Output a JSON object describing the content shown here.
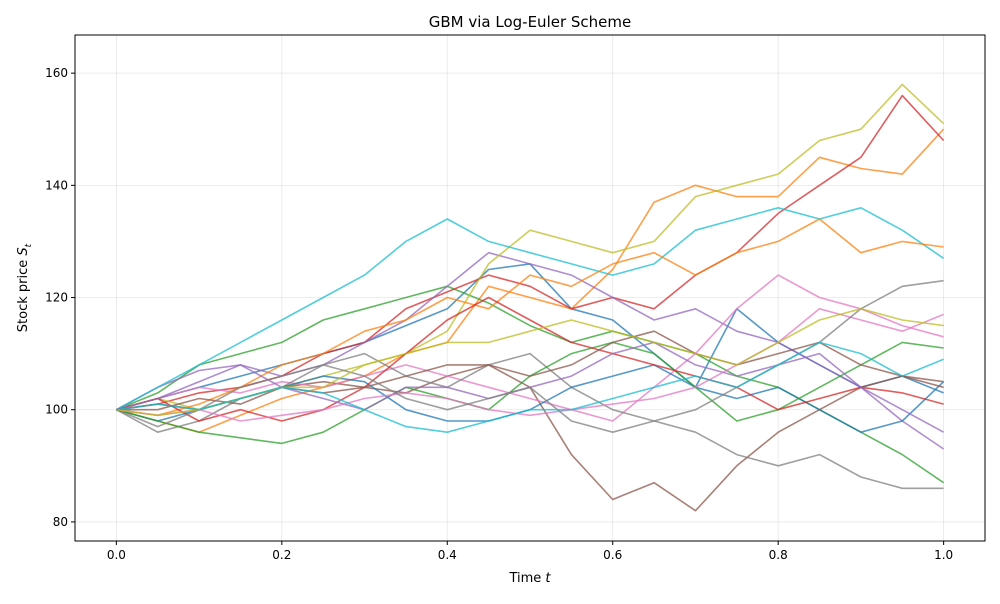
{
  "chart_data": {
    "type": "line",
    "title": "GBM via Log-Euler Scheme",
    "xlabel": "Time t",
    "ylabel": "Stock price S_t",
    "xlim": [
      -0.05,
      1.05
    ],
    "ylim": [
      76.6,
      166.8
    ],
    "xticks": [
      0.0,
      0.2,
      0.4,
      0.6,
      0.8,
      1.0
    ],
    "xtick_labels": [
      "0.0",
      "0.2",
      "0.4",
      "0.6",
      "0.8",
      "1.0"
    ],
    "yticks": [
      80,
      100,
      120,
      140,
      160
    ],
    "ytick_labels": [
      "80",
      "100",
      "120",
      "140",
      "160"
    ],
    "grid": true,
    "legend": "none",
    "line_alpha": 0.75,
    "x": [
      0,
      0.05,
      0.1,
      0.15,
      0.2,
      0.25,
      0.3,
      0.35,
      0.4,
      0.45,
      0.5,
      0.55,
      0.6,
      0.65,
      0.7,
      0.75,
      0.8,
      0.85,
      0.9,
      0.95,
      1.0
    ],
    "series": [
      {
        "color": "#1f77b4",
        "values": [
          100,
          102,
          104,
          106,
          108,
          110,
          112,
          115,
          118,
          125,
          126,
          118,
          116,
          110,
          104,
          118,
          112,
          108,
          104,
          106,
          103
        ]
      },
      {
        "color": "#ff7f0e",
        "values": [
          100,
          98,
          96,
          99,
          102,
          104,
          106,
          110,
          112,
          122,
          120,
          118,
          125,
          137,
          140,
          138,
          138,
          145,
          143,
          142,
          150
        ]
      },
      {
        "color": "#2ca02c",
        "values": [
          100,
          103,
          108,
          110,
          112,
          116,
          118,
          120,
          122,
          119,
          115,
          112,
          114,
          112,
          110,
          106,
          104,
          100,
          96,
          92,
          87
        ]
      },
      {
        "color": "#d62728",
        "values": [
          100,
          101,
          103,
          104,
          106,
          110,
          112,
          118,
          121,
          124,
          122,
          118,
          120,
          118,
          124,
          128,
          135,
          140,
          145,
          156,
          148
        ]
      },
      {
        "color": "#9467bd",
        "values": [
          100,
          104,
          107,
          108,
          106,
          108,
          112,
          116,
          122,
          128,
          126,
          124,
          120,
          116,
          118,
          114,
          112,
          108,
          104,
          98,
          93
        ]
      },
      {
        "color": "#8c564b",
        "values": [
          100,
          101,
          100,
          102,
          104,
          105,
          104,
          103,
          106,
          108,
          104,
          92,
          84,
          87,
          82,
          90,
          96,
          100,
          104,
          106,
          105
        ]
      },
      {
        "color": "#e377c2",
        "values": [
          100,
          102,
          104,
          103,
          105,
          104,
          106,
          108,
          106,
          104,
          102,
          100,
          98,
          104,
          110,
          118,
          124,
          120,
          118,
          115,
          113
        ]
      },
      {
        "color": "#7f7f7f",
        "values": [
          100,
          96,
          98,
          102,
          104,
          108,
          110,
          106,
          104,
          108,
          110,
          104,
          100,
          98,
          96,
          92,
          90,
          92,
          88,
          86,
          86
        ]
      },
      {
        "color": "#bcbd22",
        "values": [
          100,
          102,
          100,
          102,
          104,
          106,
          108,
          110,
          114,
          126,
          132,
          130,
          128,
          130,
          138,
          140,
          142,
          148,
          150,
          158,
          151
        ]
      },
      {
        "color": "#17becf",
        "values": [
          100,
          104,
          108,
          112,
          116,
          120,
          124,
          130,
          134,
          130,
          128,
          126,
          124,
          126,
          132,
          134,
          136,
          134,
          136,
          132,
          127
        ]
      },
      {
        "color": "#1f77b4",
        "values": [
          100,
          98,
          100,
          102,
          104,
          106,
          105,
          100,
          98,
          98,
          100,
          104,
          106,
          108,
          104,
          102,
          104,
          100,
          96,
          98,
          105
        ]
      },
      {
        "color": "#ff7f0e",
        "values": [
          100,
          99,
          101,
          104,
          108,
          110,
          114,
          116,
          120,
          118,
          124,
          122,
          126,
          128,
          124,
          128,
          130,
          134,
          128,
          130,
          129
        ]
      },
      {
        "color": "#2ca02c",
        "values": [
          100,
          98,
          96,
          95,
          94,
          96,
          100,
          104,
          102,
          100,
          106,
          110,
          112,
          110,
          104,
          98,
          100,
          104,
          108,
          112,
          111
        ]
      },
      {
        "color": "#d62728",
        "values": [
          100,
          102,
          98,
          100,
          98,
          100,
          104,
          110,
          116,
          120,
          116,
          112,
          110,
          108,
          106,
          104,
          100,
          102,
          104,
          103,
          101
        ]
      },
      {
        "color": "#9467bd",
        "values": [
          100,
          102,
          105,
          108,
          104,
          102,
          100,
          104,
          104,
          102,
          104,
          106,
          110,
          112,
          108,
          106,
          108,
          110,
          104,
          100,
          96
        ]
      },
      {
        "color": "#8c564b",
        "values": [
          100,
          100,
          102,
          101,
          104,
          103,
          104,
          106,
          108,
          108,
          106,
          108,
          112,
          114,
          110,
          108,
          110,
          112,
          108,
          106,
          104
        ]
      },
      {
        "color": "#e377c2",
        "values": [
          100,
          99,
          100,
          98,
          99,
          100,
          102,
          103,
          102,
          100,
          99,
          100,
          101,
          102,
          104,
          108,
          112,
          118,
          116,
          114,
          117
        ]
      },
      {
        "color": "#7f7f7f",
        "values": [
          100,
          97,
          100,
          104,
          106,
          108,
          106,
          102,
          100,
          102,
          104,
          98,
          96,
          98,
          100,
          104,
          108,
          112,
          118,
          122,
          123
        ]
      },
      {
        "color": "#bcbd22",
        "values": [
          100,
          99,
          100,
          102,
          104,
          104,
          108,
          110,
          112,
          112,
          114,
          116,
          114,
          112,
          110,
          108,
          112,
          116,
          118,
          116,
          115
        ]
      },
      {
        "color": "#17becf",
        "values": [
          100,
          101,
          100,
          102,
          104,
          103,
          100,
          97,
          96,
          98,
          100,
          100,
          102,
          104,
          106,
          104,
          108,
          112,
          110,
          106,
          109
        ]
      }
    ]
  }
}
